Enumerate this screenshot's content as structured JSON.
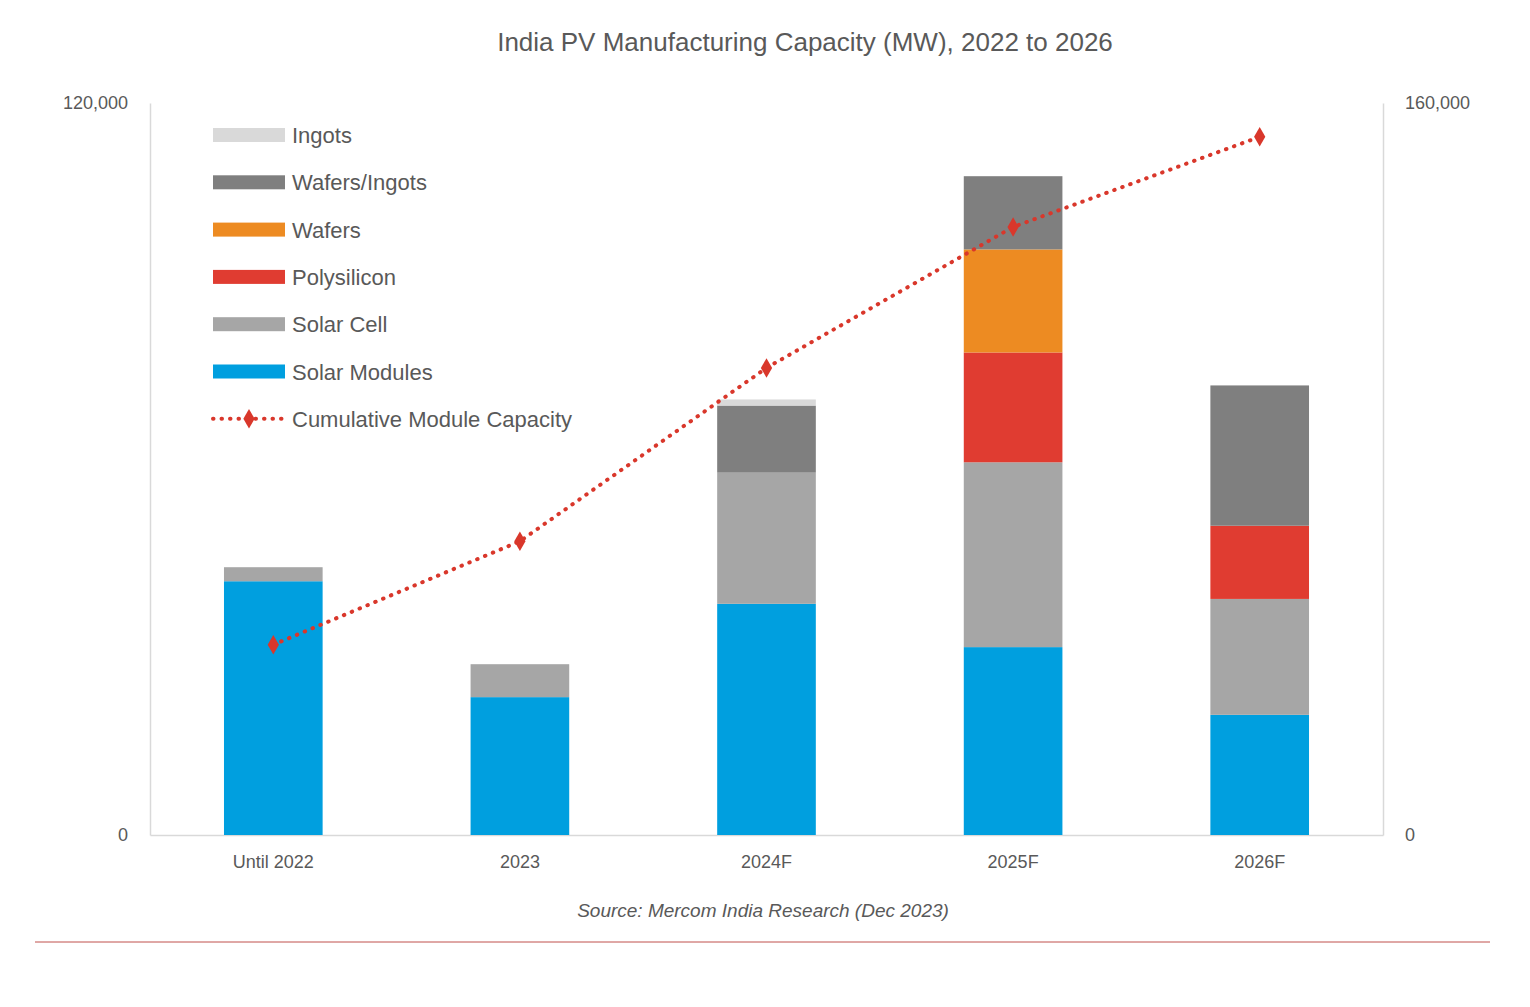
{
  "chart_data": {
    "type": "bar",
    "stacked": true,
    "title": "India PV Manufacturing Capacity (MW), 2022 to 2026",
    "source": "Source: Mercom India Research (Dec 2023)",
    "categories": [
      "Until 2022",
      "2023",
      "2024F",
      "2025F",
      "2026F"
    ],
    "series": [
      {
        "name": "Ingots",
        "color": "#d9d9d9",
        "values": [
          null,
          null,
          1000,
          null,
          null
        ]
      },
      {
        "name": "Wafers/Ingots",
        "color": "#7f7f7f",
        "values": [
          null,
          null,
          11000,
          12000,
          23000
        ]
      },
      {
        "name": "Wafers",
        "color": "#ed8b22",
        "values": [
          null,
          null,
          null,
          16900,
          null
        ]
      },
      {
        "name": "Polysilicon",
        "color": "#e03c31",
        "values": [
          null,
          null,
          null,
          18000,
          12000
        ]
      },
      {
        "name": "Solar Cell",
        "color": "#a6a6a6",
        "values": [
          2300,
          5400,
          21500,
          30300,
          19000
        ]
      },
      {
        "name": "Solar Modules",
        "color": "#009fdf",
        "values": [
          41600,
          22600,
          37900,
          30800,
          19700
        ]
      },
      {
        "name": "Cumulative Module Capacity",
        "type": "line",
        "axis": "y2",
        "color": "#d9372b",
        "marker": "diamond",
        "line_style": "dotted",
        "values": [
          41600,
          64200,
          102100,
          132900,
          152600
        ]
      }
    ],
    "ylim": [
      0,
      120000
    ],
    "yticks": [
      0,
      {
        "value": 120000,
        "label": "120,000"
      }
    ],
    "y2lim": [
      0,
      160000
    ],
    "y2ticks": [
      0,
      {
        "value": 160000,
        "label": "160,000"
      }
    ],
    "grid": false,
    "legend": "top-left"
  }
}
